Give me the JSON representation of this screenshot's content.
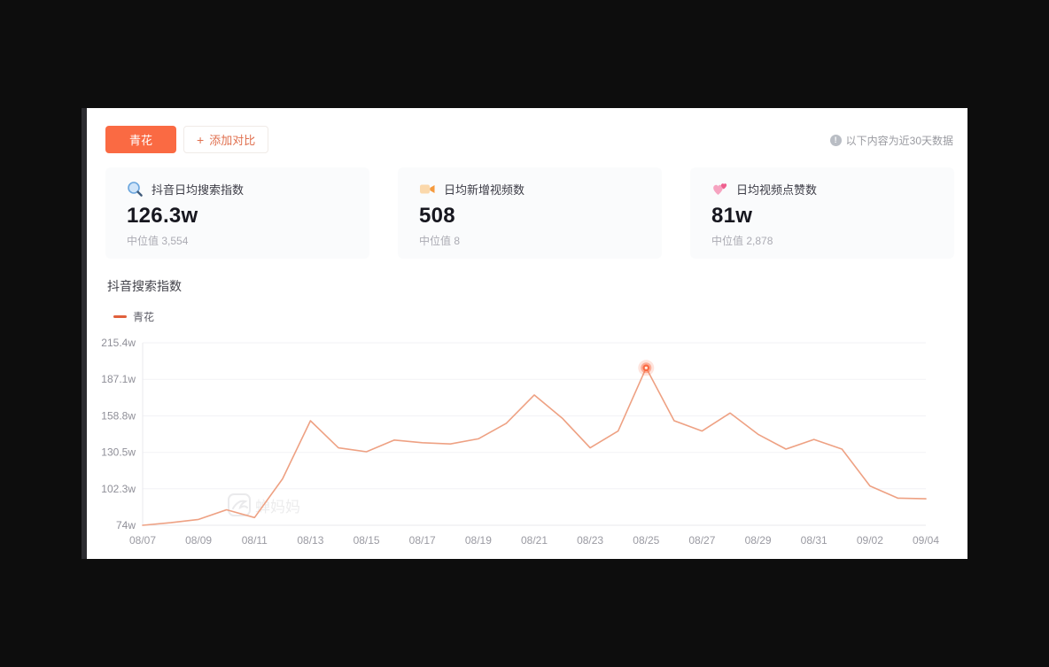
{
  "toolbar": {
    "keyword_label": "青花",
    "add_compare_plus": "+",
    "add_compare_label": "添加对比",
    "notice": "以下内容为近30天数据",
    "info_glyph": "!"
  },
  "colors": {
    "accent": "#fa6a43",
    "legend_dash": "#e0603c",
    "line": "#eea183",
    "page_background": "#0d0d0d",
    "card_background": "#fafbfc"
  },
  "stats": {
    "cards": [
      {
        "icon": "search-icon",
        "label": "抖音日均搜索指数",
        "value": "126.3w",
        "median": "中位值 3,554"
      },
      {
        "icon": "video-icon",
        "label": "日均新增视频数",
        "value": "508",
        "median": "中位值 8"
      },
      {
        "icon": "heart-icon",
        "label": "日均视频点赞数",
        "value": "81w",
        "median": "中位值 2,878"
      }
    ]
  },
  "chart_data": {
    "type": "line",
    "title": "抖音搜索指数",
    "legend": [
      {
        "name": "青花",
        "color": "#e0603c"
      }
    ],
    "legend_position": "top-left",
    "grid": true,
    "watermark": "蝉妈妈",
    "x": [
      "08/07",
      "08/08",
      "08/09",
      "08/10",
      "08/11",
      "08/12",
      "08/13",
      "08/14",
      "08/15",
      "08/16",
      "08/17",
      "08/18",
      "08/19",
      "08/20",
      "08/21",
      "08/22",
      "08/23",
      "08/24",
      "08/25",
      "08/26",
      "08/27",
      "08/28",
      "08/29",
      "08/30",
      "08/31",
      "09/01",
      "09/02",
      "09/03",
      "09/04"
    ],
    "x_tick_every": 2,
    "series": [
      {
        "name": "青花",
        "color": "#eea183",
        "values": [
          74,
          76,
          78.5,
          86,
          80,
          110,
          155,
          134,
          131,
          140,
          138,
          137,
          141,
          153,
          175,
          157,
          134,
          147,
          196,
          155,
          147,
          161,
          144.5,
          133,
          140.5,
          133,
          104.5,
          95,
          94.5
        ]
      }
    ],
    "unit": "w",
    "ylim": [
      74,
      215.4
    ],
    "y_ticks": [
      {
        "label": "74w",
        "value": 74
      },
      {
        "label": "102.3w",
        "value": 102.3
      },
      {
        "label": "130.5w",
        "value": 130.5
      },
      {
        "label": "158.8w",
        "value": 158.8
      },
      {
        "label": "187.1w",
        "value": 187.1
      },
      {
        "label": "215.4w",
        "value": 215.4
      }
    ],
    "highlight": {
      "date": "08/25",
      "index": 18,
      "value": 196
    }
  }
}
